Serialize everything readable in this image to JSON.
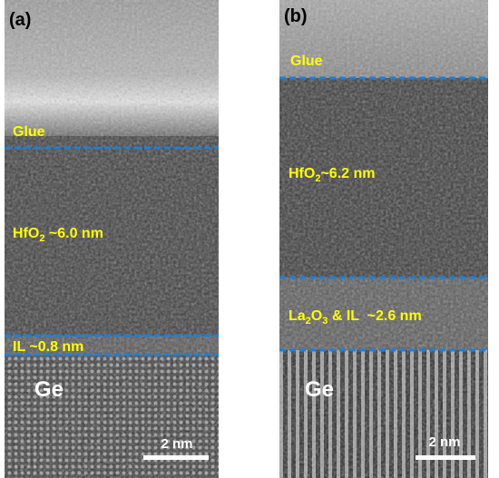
{
  "panels": [
    {
      "tag": "(a)",
      "glue": "Glue",
      "oxide": {
        "main": "HfO",
        "sub": "2",
        "rest": " ~6.0 nm"
      },
      "interlayer": "IL ~0.8 nm",
      "substrate": "Ge",
      "scale_bar": "2 nm"
    },
    {
      "tag": "(b)",
      "glue": "Glue",
      "oxide": {
        "main": "HfO",
        "sub": "2",
        "rest": "~6.2 nm"
      },
      "interlayer": {
        "main": "La",
        "sub": "2",
        "mid": "O",
        "sub2": "3",
        "rest": " & IL  ~2.6 nm"
      },
      "substrate": "Ge",
      "scale_bar": "2 nm"
    }
  ]
}
